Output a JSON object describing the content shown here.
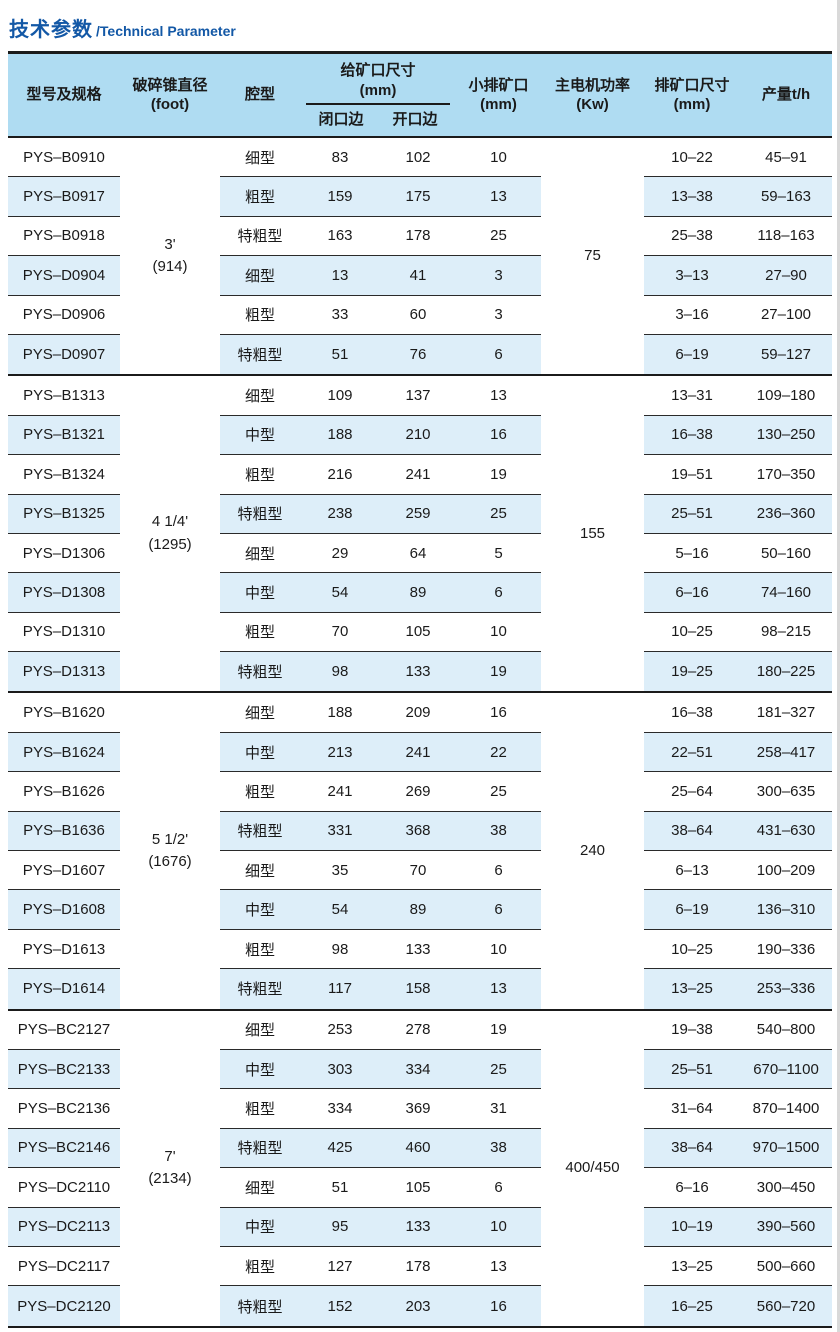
{
  "title": {
    "zh": "技术参数",
    "en": "/Technical Parameter"
  },
  "colors": {
    "title_blue": "#1358a6",
    "header_bg": "#afdcf2",
    "stripe_bg": "#ddeef9",
    "line_dark": "#1b1b1b"
  },
  "table": {
    "headers": {
      "model": "型号及规格",
      "cone_diameter": [
        "破碎锥直径",
        "(foot)"
      ],
      "cavity": "腔型",
      "feed_size": [
        "给矿口尺寸",
        "(mm)"
      ],
      "feed_closed": "闭口边",
      "feed_open": "开口边",
      "min_discharge": [
        "小排矿口",
        "(mm)"
      ],
      "motor_power": [
        "主电机功率",
        "(Kw)"
      ],
      "discharge_size": [
        "排矿口尺寸",
        "(mm)"
      ],
      "capacity": "产量t/h"
    },
    "groups": [
      {
        "diameter": [
          "3'",
          "(914)"
        ],
        "power": "75",
        "rows": [
          [
            "PYS–B0910",
            "细型",
            "83",
            "102",
            "10",
            "10–22",
            "45–91"
          ],
          [
            "PYS–B0917",
            "粗型",
            "159",
            "175",
            "13",
            "13–38",
            "59–163"
          ],
          [
            "PYS–B0918",
            "特粗型",
            "163",
            "178",
            "25",
            "25–38",
            "118–163"
          ],
          [
            "PYS–D0904",
            "细型",
            "13",
            "41",
            "3",
            "3–13",
            "27–90"
          ],
          [
            "PYS–D0906",
            "粗型",
            "33",
            "60",
            "3",
            "3–16",
            "27–100"
          ],
          [
            "PYS–D0907",
            "特粗型",
            "51",
            "76",
            "6",
            "6–19",
            "59–127"
          ]
        ]
      },
      {
        "diameter": [
          "4 1/4'",
          "(1295)"
        ],
        "power": "155",
        "rows": [
          [
            "PYS–B1313",
            "细型",
            "109",
            "137",
            "13",
            "13–31",
            "109–180"
          ],
          [
            "PYS–B1321",
            "中型",
            "188",
            "210",
            "16",
            "16–38",
            "130–250"
          ],
          [
            "PYS–B1324",
            "粗型",
            "216",
            "241",
            "19",
            "19–51",
            "170–350"
          ],
          [
            "PYS–B1325",
            "特粗型",
            "238",
            "259",
            "25",
            "25–51",
            "236–360"
          ],
          [
            "PYS–D1306",
            "细型",
            "29",
            "64",
            "5",
            "5–16",
            "50–160"
          ],
          [
            "PYS–D1308",
            "中型",
            "54",
            "89",
            "6",
            "6–16",
            "74–160"
          ],
          [
            "PYS–D1310",
            "粗型",
            "70",
            "105",
            "10",
            "10–25",
            "98–215"
          ],
          [
            "PYS–D1313",
            "特粗型",
            "98",
            "133",
            "19",
            "19–25",
            "180–225"
          ]
        ]
      },
      {
        "diameter": [
          "5 1/2'",
          "(1676)"
        ],
        "power": "240",
        "rows": [
          [
            "PYS–B1620",
            "细型",
            "188",
            "209",
            "16",
            "16–38",
            "181–327"
          ],
          [
            "PYS–B1624",
            "中型",
            "213",
            "241",
            "22",
            "22–51",
            "258–417"
          ],
          [
            "PYS–B1626",
            "粗型",
            "241",
            "269",
            "25",
            "25–64",
            "300–635"
          ],
          [
            "PYS–B1636",
            "特粗型",
            "331",
            "368",
            "38",
            "38–64",
            "431–630"
          ],
          [
            "PYS–D1607",
            "细型",
            "35",
            "70",
            "6",
            "6–13",
            "100–209"
          ],
          [
            "PYS–D1608",
            "中型",
            "54",
            "89",
            "6",
            "6–19",
            "136–310"
          ],
          [
            "PYS–D1613",
            "粗型",
            "98",
            "133",
            "10",
            "10–25",
            "190–336"
          ],
          [
            "PYS–D1614",
            "特粗型",
            "117",
            "158",
            "13",
            "13–25",
            "253–336"
          ]
        ]
      },
      {
        "diameter": [
          "7'",
          "(2134)"
        ],
        "power": "400/450",
        "rows": [
          [
            "PYS–BC2127",
            "细型",
            "253",
            "278",
            "19",
            "19–38",
            "540–800"
          ],
          [
            "PYS–BC2133",
            "中型",
            "303",
            "334",
            "25",
            "25–51",
            "670–1100"
          ],
          [
            "PYS–BC2136",
            "粗型",
            "334",
            "369",
            "31",
            "31–64",
            "870–1400"
          ],
          [
            "PYS–BC2146",
            "特粗型",
            "425",
            "460",
            "38",
            "38–64",
            "970–1500"
          ],
          [
            "PYS–DC2110",
            "细型",
            "51",
            "105",
            "6",
            "6–16",
            "300–450"
          ],
          [
            "PYS–DC2113",
            "中型",
            "95",
            "133",
            "10",
            "10–19",
            "390–560"
          ],
          [
            "PYS–DC2117",
            "粗型",
            "127",
            "178",
            "13",
            "13–25",
            "500–660"
          ],
          [
            "PYS–DC2120",
            "特粗型",
            "152",
            "203",
            "16",
            "16–25",
            "560–720"
          ]
        ]
      }
    ]
  }
}
